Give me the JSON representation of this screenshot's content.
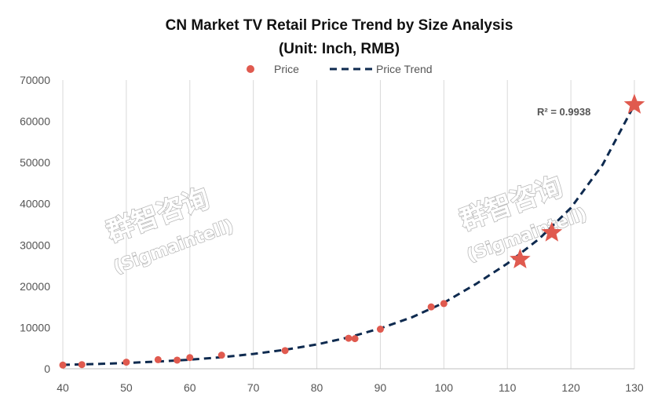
{
  "chart_data": {
    "type": "scatter",
    "title": "CN Market TV Retail Price Trend by Size Analysis",
    "subtitle": "(Unit: Inch, RMB)",
    "xlabel": "",
    "ylabel": "",
    "xlim": [
      40,
      130
    ],
    "ylim": [
      0,
      70000
    ],
    "x_ticks": [
      "40",
      "50",
      "60",
      "70",
      "80",
      "90",
      "100",
      "110",
      "120",
      "130"
    ],
    "y_ticks": [
      "0",
      "10000",
      "20000",
      "30000",
      "40000",
      "50000",
      "60000",
      "70000"
    ],
    "grid": "vertical",
    "legend_position": "top",
    "legend": {
      "price_label": "Price",
      "trend_label": "Price Trend"
    },
    "series": [
      {
        "name": "Price",
        "marker": "circle",
        "color": "#e05a4f",
        "points": [
          [
            40,
            900
          ],
          [
            43,
            1000
          ],
          [
            50,
            1600
          ],
          [
            55,
            2200
          ],
          [
            58,
            2100
          ],
          [
            60,
            2700
          ],
          [
            65,
            3300
          ],
          [
            75,
            4400
          ],
          [
            85,
            7400
          ],
          [
            86,
            7300
          ],
          [
            90,
            9600
          ],
          [
            98,
            15000
          ],
          [
            100,
            15800
          ]
        ]
      },
      {
        "name": "Price",
        "marker": "star",
        "color": "#e05a4f",
        "points": [
          [
            112,
            26500
          ],
          [
            117,
            33000
          ],
          [
            130,
            64000
          ]
        ]
      }
    ],
    "trend": {
      "name": "Price Trend",
      "color": "#0e2a4f",
      "style": "dashed",
      "points": [
        [
          40,
          950
        ],
        [
          45,
          1150
        ],
        [
          50,
          1400
        ],
        [
          55,
          1750
        ],
        [
          60,
          2200
        ],
        [
          65,
          2800
        ],
        [
          70,
          3600
        ],
        [
          75,
          4600
        ],
        [
          80,
          5900
        ],
        [
          85,
          7600
        ],
        [
          90,
          9800
        ],
        [
          95,
          12500
        ],
        [
          100,
          16000
        ],
        [
          105,
          20500
        ],
        [
          110,
          25500
        ],
        [
          115,
          31500
        ],
        [
          120,
          39000
        ],
        [
          125,
          49500
        ],
        [
          130,
          64000
        ]
      ]
    },
    "annotation": {
      "text": "R² = 0.9938"
    }
  },
  "watermark": {
    "primary": "群智咨询",
    "secondary": "(Sigmaintell)"
  }
}
